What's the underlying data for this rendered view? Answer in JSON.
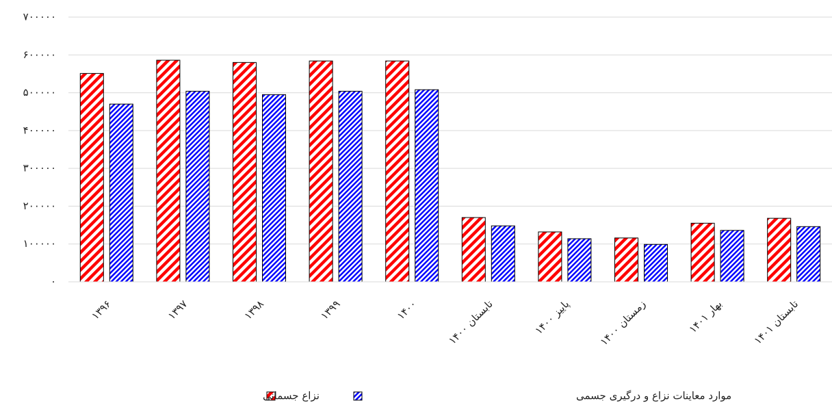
{
  "chart_data": {
    "type": "bar",
    "categories": [
      "۱۳۹۶",
      "۱۳۹۷",
      "۱۳۹۸",
      "۱۳۹۹",
      "۱۴۰۰",
      "تابستان ۱۴۰۰",
      "پاییز ۱۴۰۰",
      "زمستان ۱۴۰۰",
      "بهار ۱۴۰۱",
      "تابستان ۱۴۰۱"
    ],
    "series": [
      {
        "name": "نزاع جسمانی",
        "color": "#ff0000",
        "values": [
          551000,
          586000,
          580000,
          584000,
          584000,
          170000,
          132000,
          116000,
          155000,
          168000
        ]
      },
      {
        "name": "موارد معاینات نزاع و درگیری جسمی",
        "color": "#0000ff",
        "values": [
          470000,
          504000,
          495000,
          504000,
          508000,
          148000,
          114000,
          99000,
          136000,
          146000
        ]
      }
    ],
    "ylim": [
      0,
      700000
    ],
    "yticks": [
      {
        "value": 0,
        "label": "۰"
      },
      {
        "value": 100000,
        "label": "۱۰۰۰۰۰"
      },
      {
        "value": 200000,
        "label": "۲۰۰۰۰۰"
      },
      {
        "value": 300000,
        "label": "۳۰۰۰۰۰"
      },
      {
        "value": 400000,
        "label": "۴۰۰۰۰۰"
      },
      {
        "value": 500000,
        "label": "۵۰۰۰۰۰"
      },
      {
        "value": 600000,
        "label": "۶۰۰۰۰۰"
      },
      {
        "value": 700000,
        "label": "۷۰۰۰۰۰"
      }
    ],
    "grid": true,
    "legend": "bottom"
  }
}
